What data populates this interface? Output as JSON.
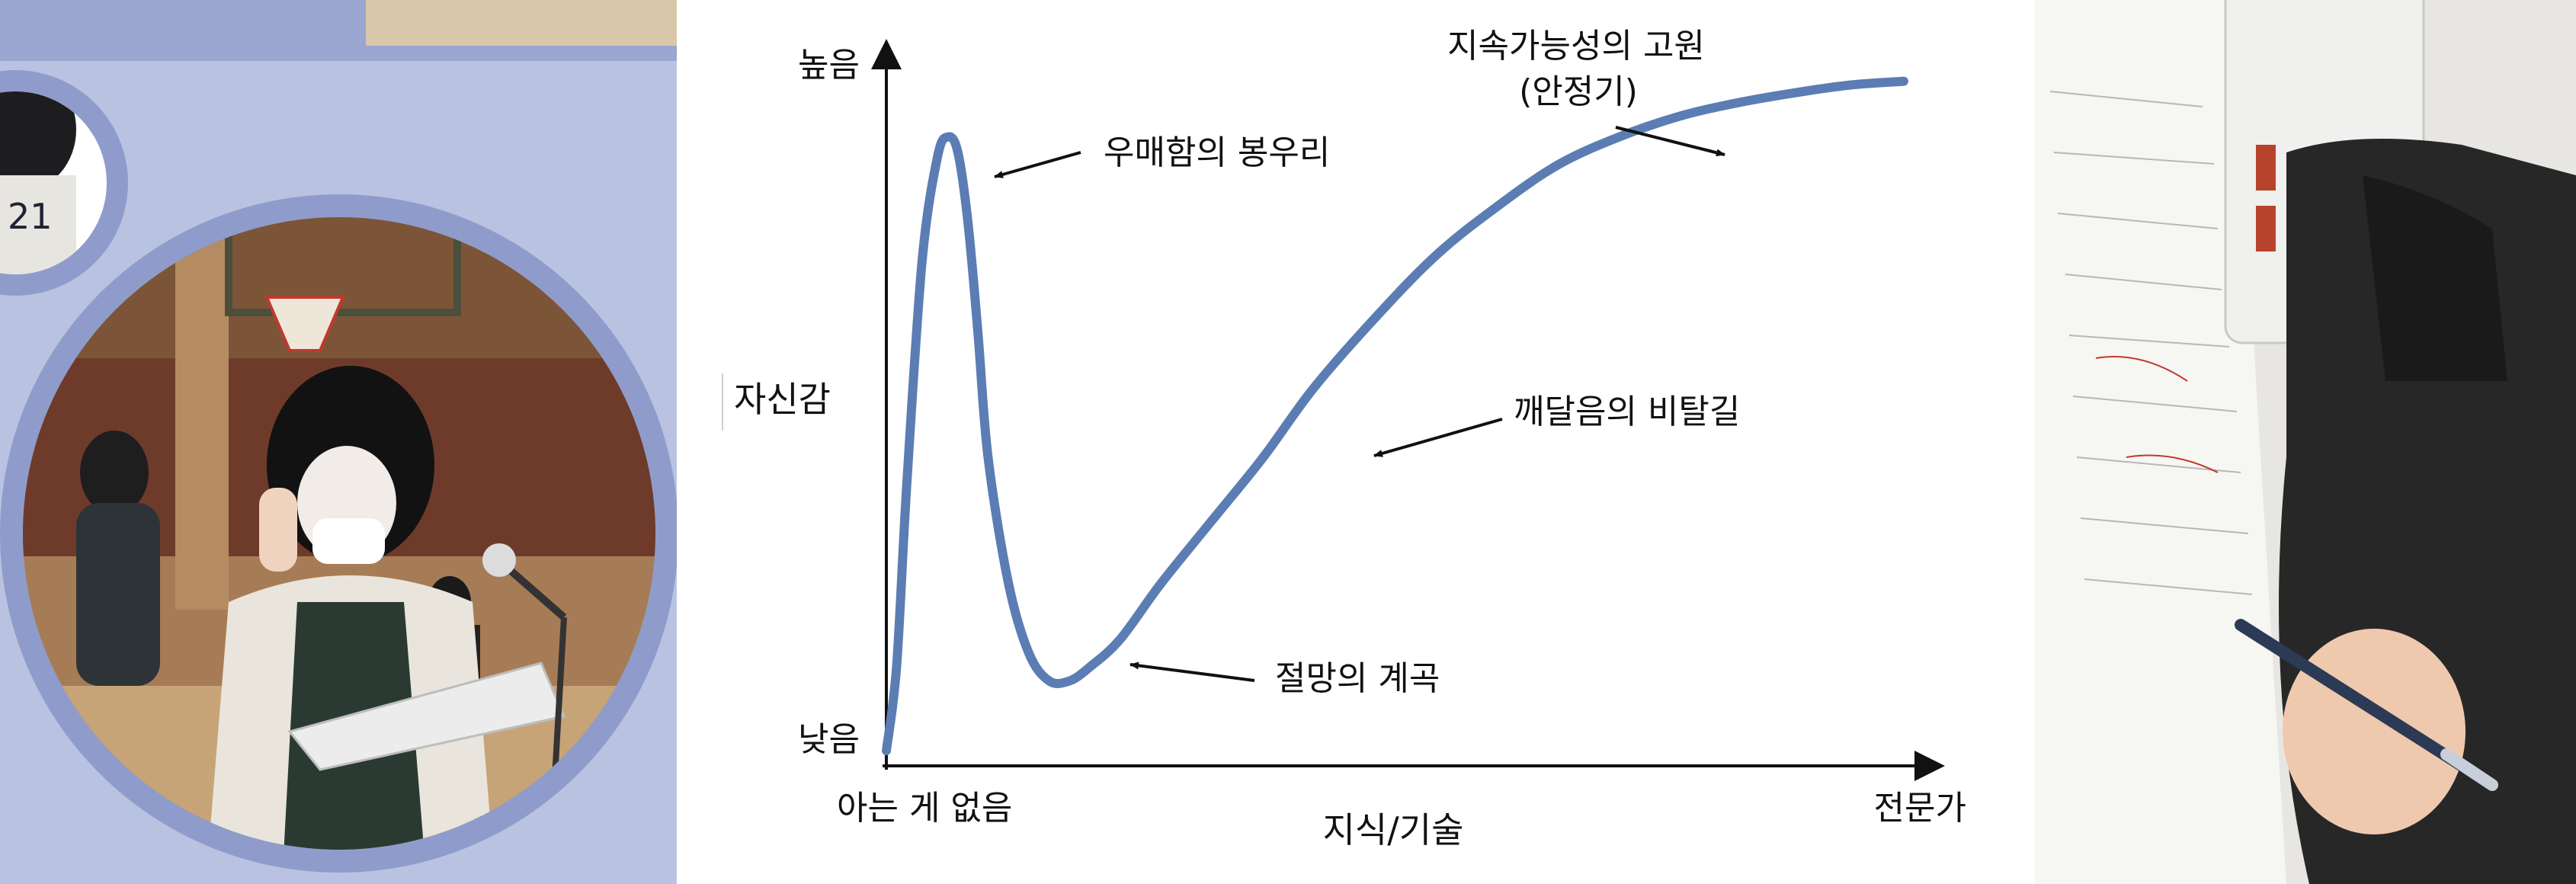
{
  "chart_data": {
    "type": "line",
    "title": "",
    "xlabel": "지식/기술",
    "ylabel": "자신감",
    "x_tick_labels": [
      "아는 게 없음",
      "전문가"
    ],
    "y_tick_labels": [
      "낮음",
      "높음"
    ],
    "xlim": [
      0,
      100
    ],
    "ylim": [
      0,
      100
    ],
    "grid": false,
    "series": [
      {
        "x": [
          0,
          1,
          2,
          3.5,
          5,
          6,
          7,
          8,
          9,
          10,
          12,
          14,
          16,
          18,
          20,
          23,
          27,
          32,
          37,
          42,
          48,
          54,
          60,
          66,
          72,
          78,
          84,
          90,
          95,
          100
        ],
        "y": [
          0,
          12,
          38,
          70,
          85,
          88,
          86,
          76,
          60,
          42,
          24,
          14,
          10,
          10,
          12,
          16,
          24,
          33,
          42,
          52,
          62,
          71,
          78,
          84,
          88,
          91,
          93,
          94.5,
          95.5,
          96
        ],
        "color": "#5b7db4"
      }
    ],
    "annotations": [
      {
        "text": "우매함의 봉우리"
      },
      {
        "text": "절망의 계곡"
      },
      {
        "text": "깨달음의 비탈길"
      },
      {
        "text": "지속가능성의 고원"
      },
      {
        "text": "(안정기)"
      }
    ]
  },
  "photos": {
    "left": {
      "subject": "student-reading-pledge-at-podium",
      "jacket_patch_text": "21"
    },
    "right": {
      "subject": "student-writing-in-notebook"
    }
  }
}
